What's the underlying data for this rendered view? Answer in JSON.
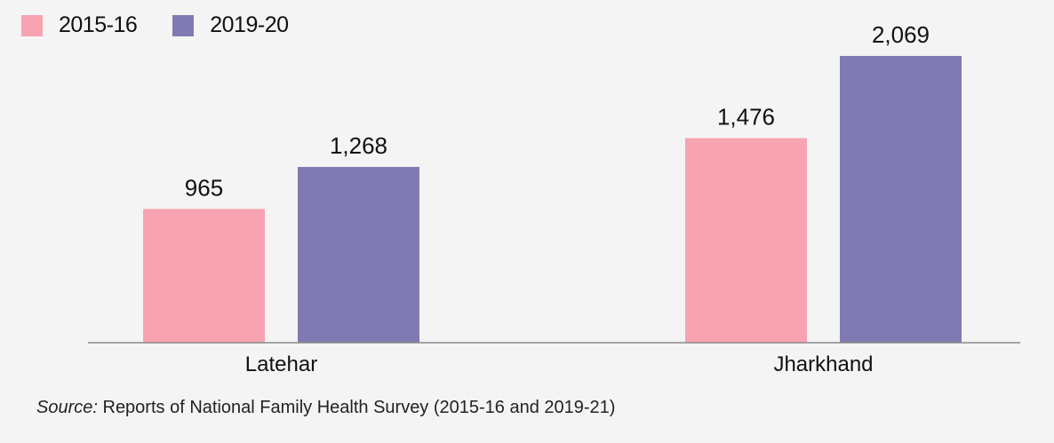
{
  "chart_data": {
    "type": "bar",
    "categories": [
      "Latehar",
      "Jharkhand"
    ],
    "series": [
      {
        "name": "2015-16",
        "values": [
          965,
          1476
        ],
        "color": "#f8a3b1"
      },
      {
        "name": "2019-20",
        "values": [
          1268,
          2069
        ],
        "color": "#7f7bb2"
      }
    ],
    "data_labels": [
      [
        "965",
        "1,476"
      ],
      [
        "1,268",
        "2,069"
      ]
    ],
    "ylim": [
      0,
      2069
    ],
    "grid": false,
    "legend": "top-left",
    "title": "",
    "xlabel": "",
    "ylabel": ""
  },
  "source": {
    "label": "Source:",
    "text": " Reports of National Family Health Survey (2015-16 and 2019-21)"
  }
}
